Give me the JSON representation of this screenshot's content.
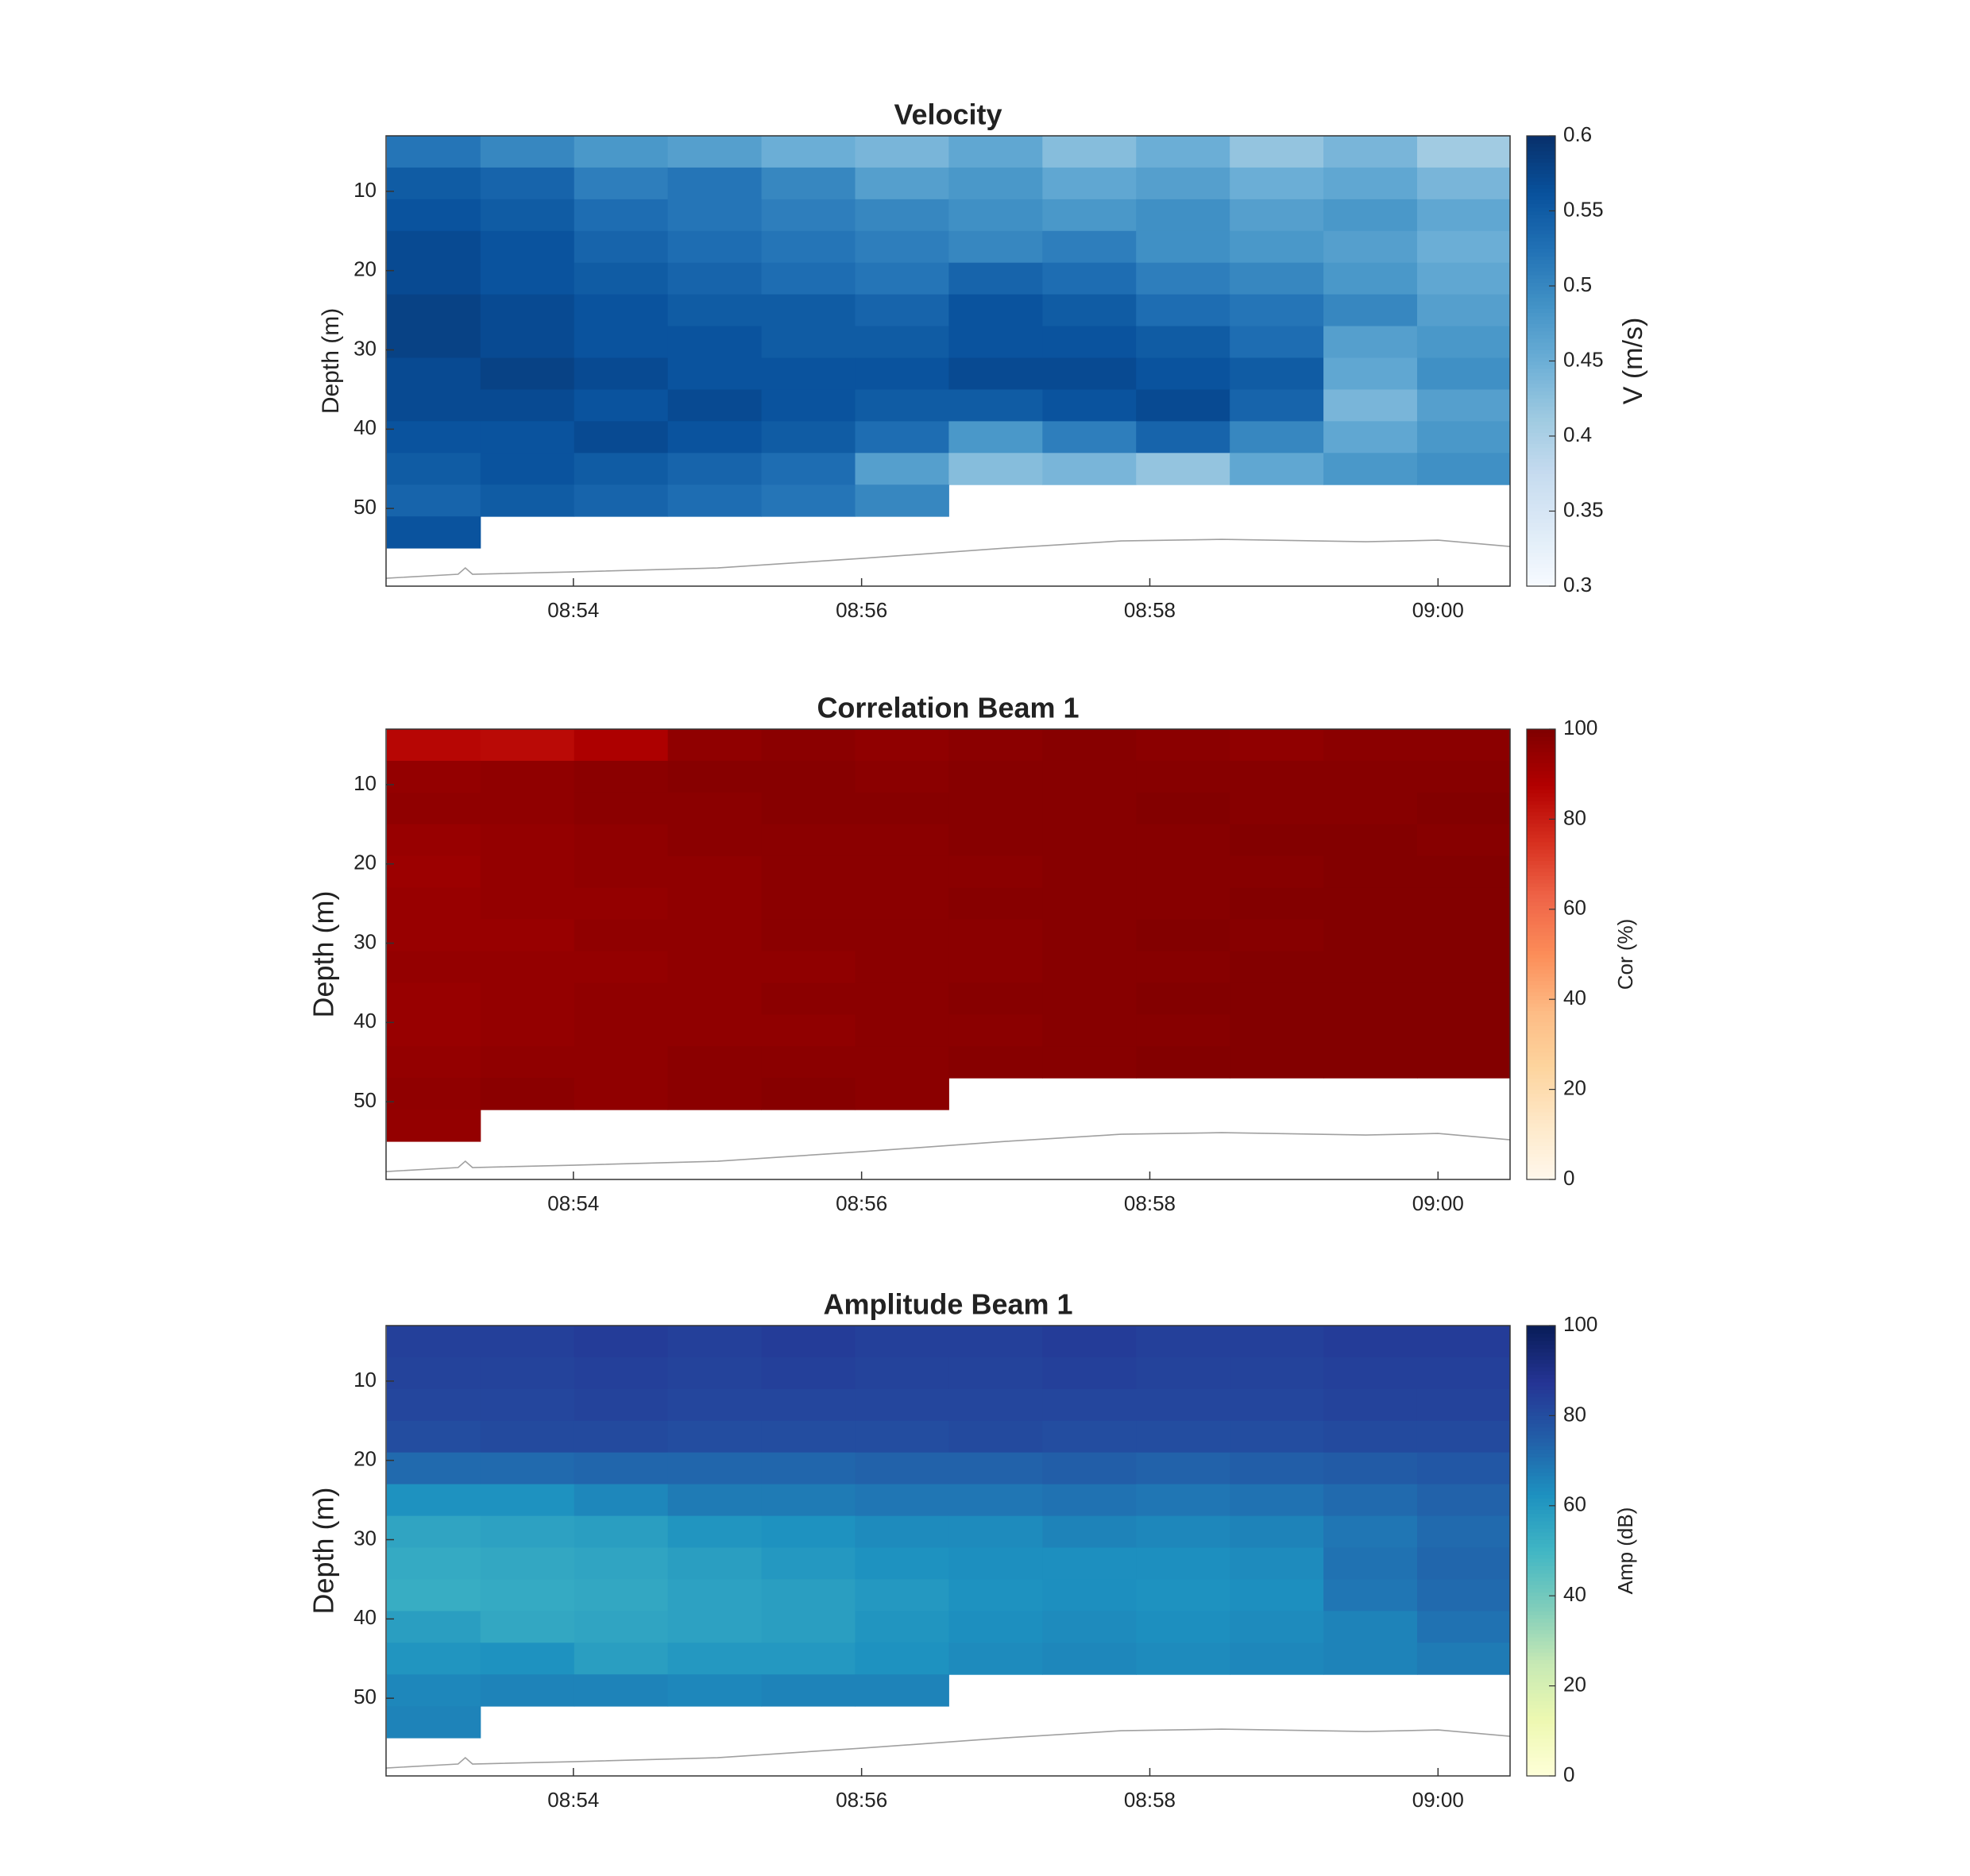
{
  "chart_data": [
    {
      "type": "heatmap",
      "title": "Velocity",
      "ylabel": "Depth (m)",
      "colorbar_label": "V (m/s)",
      "xlim": [
        532.7,
        540.5
      ],
      "ylim": [
        3,
        59.8
      ],
      "xticks": [
        {
          "value": 534,
          "label": "08:54"
        },
        {
          "value": 536,
          "label": "08:56"
        },
        {
          "value": 538,
          "label": "08:58"
        },
        {
          "value": 540,
          "label": "09:00"
        }
      ],
      "yticks": [
        10,
        20,
        30,
        40,
        50
      ],
      "clim": [
        0.3,
        0.6
      ],
      "cticks": [
        0.3,
        0.35,
        0.4,
        0.45,
        0.5,
        0.55,
        0.6
      ],
      "colormap": [
        "#f7fbff",
        "#deebf7",
        "#c6dbef",
        "#9ecae1",
        "#6baed6",
        "#4292c6",
        "#2171b5",
        "#08519c",
        "#08306b"
      ],
      "x": [
        533.03,
        533.68,
        534.33,
        534.98,
        535.63,
        536.28,
        536.93,
        537.58,
        538.23,
        538.88,
        539.53,
        540.18
      ],
      "y": [
        5,
        9,
        13,
        17,
        21,
        25,
        29,
        33,
        37,
        41,
        45,
        49,
        53
      ],
      "z": [
        [
          0.52,
          0.5,
          0.48,
          0.47,
          0.45,
          0.44,
          0.46,
          0.43,
          0.45,
          0.42,
          0.44,
          0.41
        ],
        [
          0.55,
          0.54,
          0.51,
          0.52,
          0.5,
          0.47,
          0.48,
          0.46,
          0.47,
          0.45,
          0.46,
          0.44
        ],
        [
          0.56,
          0.55,
          0.53,
          0.52,
          0.51,
          0.5,
          0.49,
          0.48,
          0.49,
          0.47,
          0.48,
          0.46
        ],
        [
          0.57,
          0.56,
          0.54,
          0.53,
          0.52,
          0.51,
          0.5,
          0.51,
          0.49,
          0.48,
          0.47,
          0.45
        ],
        [
          0.57,
          0.56,
          0.55,
          0.54,
          0.53,
          0.52,
          0.54,
          0.53,
          0.51,
          0.5,
          0.48,
          0.46
        ],
        [
          0.58,
          0.57,
          0.56,
          0.55,
          0.55,
          0.54,
          0.56,
          0.55,
          0.53,
          0.52,
          0.5,
          0.47
        ],
        [
          0.58,
          0.57,
          0.56,
          0.56,
          0.55,
          0.55,
          0.56,
          0.56,
          0.55,
          0.53,
          0.47,
          0.48
        ],
        [
          0.57,
          0.58,
          0.57,
          0.56,
          0.56,
          0.56,
          0.57,
          0.57,
          0.56,
          0.55,
          0.46,
          0.49
        ],
        [
          0.57,
          0.57,
          0.56,
          0.57,
          0.56,
          0.55,
          0.55,
          0.56,
          0.57,
          0.54,
          0.44,
          0.47
        ],
        [
          0.56,
          0.56,
          0.57,
          0.56,
          0.55,
          0.53,
          0.48,
          0.51,
          0.54,
          0.5,
          0.46,
          0.48
        ],
        [
          0.55,
          0.56,
          0.55,
          0.54,
          0.53,
          0.47,
          0.43,
          0.44,
          0.42,
          0.46,
          0.48,
          0.49
        ],
        [
          0.54,
          0.55,
          0.54,
          0.53,
          0.52,
          0.5,
          null,
          null,
          null,
          null,
          null,
          null
        ],
        [
          0.56,
          null,
          null,
          null,
          null,
          null,
          null,
          null,
          null,
          null,
          null,
          null
        ]
      ],
      "bottom_line": {
        "color": "#a0a0a0",
        "x": [
          532.7,
          533.2,
          533.25,
          533.3,
          534,
          535,
          536,
          537,
          537.8,
          538.5,
          539.5,
          540,
          540.5
        ],
        "values": [
          58.8,
          58.3,
          57.5,
          58.3,
          58,
          57.5,
          56.3,
          55,
          54.1,
          53.9,
          54.2,
          54,
          54.8
        ]
      }
    },
    {
      "type": "heatmap",
      "title": "Correlation Beam 1",
      "ylabel": "Depth (m)",
      "colorbar_label": "Cor (%)",
      "xlim": [
        532.7,
        540.5
      ],
      "ylim": [
        3,
        59.8
      ],
      "xticks": [
        {
          "value": 534,
          "label": "08:54"
        },
        {
          "value": 536,
          "label": "08:56"
        },
        {
          "value": 538,
          "label": "08:58"
        },
        {
          "value": 540,
          "label": "09:00"
        }
      ],
      "yticks": [
        10,
        20,
        30,
        40,
        50
      ],
      "clim": [
        0,
        100
      ],
      "cticks": [
        0,
        20,
        40,
        60,
        80,
        100
      ],
      "colormap": [
        "#fff7ec",
        "#fee8c8",
        "#fdd49e",
        "#fdbb84",
        "#fc8d59",
        "#ef6548",
        "#d7301f",
        "#b30000",
        "#7f0000"
      ],
      "x": [
        533.03,
        533.68,
        534.33,
        534.98,
        535.63,
        536.28,
        536.93,
        537.58,
        538.23,
        538.88,
        539.53,
        540.18
      ],
      "y": [
        5,
        9,
        13,
        17,
        21,
        25,
        29,
        33,
        37,
        41,
        45,
        49,
        53
      ],
      "z": [
        [
          86,
          85,
          89,
          96,
          97,
          96,
          97,
          98,
          97,
          96,
          97,
          97
        ],
        [
          95,
          96,
          97,
          98,
          98,
          97,
          98,
          98,
          98,
          98,
          98,
          98
        ],
        [
          96,
          96,
          97,
          97,
          98,
          98,
          98,
          98,
          99,
          98,
          98,
          99
        ],
        [
          94,
          95,
          96,
          97,
          97,
          97,
          98,
          98,
          98,
          99,
          99,
          98
        ],
        [
          93,
          95,
          96,
          96,
          97,
          97,
          97,
          98,
          98,
          98,
          99,
          99
        ],
        [
          94,
          95,
          95,
          96,
          97,
          97,
          98,
          98,
          98,
          99,
          99,
          99
        ],
        [
          94,
          94,
          96,
          96,
          97,
          97,
          97,
          98,
          99,
          98,
          99,
          99
        ],
        [
          95,
          95,
          95,
          96,
          96,
          97,
          97,
          98,
          98,
          99,
          99,
          99
        ],
        [
          94,
          95,
          96,
          96,
          97,
          97,
          98,
          98,
          99,
          99,
          99,
          99
        ],
        [
          94,
          95,
          96,
          96,
          96,
          97,
          97,
          98,
          98,
          99,
          99,
          99
        ],
        [
          95,
          96,
          96,
          97,
          97,
          97,
          98,
          98,
          99,
          99,
          99,
          99
        ],
        [
          96,
          97,
          96,
          97,
          98,
          97,
          null,
          null,
          null,
          null,
          null,
          null
        ],
        [
          95,
          null,
          null,
          null,
          null,
          null,
          null,
          null,
          null,
          null,
          null,
          null
        ]
      ],
      "bottom_line": {
        "color": "#a0a0a0",
        "x": [
          532.7,
          533.2,
          533.25,
          533.3,
          534,
          535,
          536,
          537,
          537.8,
          538.5,
          539.5,
          540,
          540.5
        ],
        "values": [
          58.8,
          58.3,
          57.5,
          58.3,
          58,
          57.5,
          56.3,
          55,
          54.1,
          53.9,
          54.2,
          54,
          54.8
        ]
      }
    },
    {
      "type": "heatmap",
      "title": "Amplitude Beam 1",
      "ylabel": "Depth (m)",
      "colorbar_label": "Amp (dB)",
      "xlim": [
        532.7,
        540.5
      ],
      "ylim": [
        3,
        59.8
      ],
      "xticks": [
        {
          "value": 534,
          "label": "08:54"
        },
        {
          "value": 536,
          "label": "08:56"
        },
        {
          "value": 538,
          "label": "08:58"
        },
        {
          "value": 540,
          "label": "09:00"
        }
      ],
      "yticks": [
        10,
        20,
        30,
        40,
        50
      ],
      "clim": [
        0,
        100
      ],
      "cticks": [
        0,
        20,
        40,
        60,
        80,
        100
      ],
      "colormap": [
        "#ffffd9",
        "#edf8b1",
        "#c7e9b4",
        "#7fcdbb",
        "#41b6c4",
        "#1d91c0",
        "#225ea8",
        "#253494",
        "#081d58"
      ],
      "x": [
        533.03,
        533.68,
        534.33,
        534.98,
        535.63,
        536.28,
        536.93,
        537.58,
        538.23,
        538.88,
        539.53,
        540.18
      ],
      "y": [
        5,
        9,
        13,
        17,
        21,
        25,
        29,
        33,
        37,
        41,
        45,
        49,
        53
      ],
      "z": [
        [
          84,
          84,
          85,
          84,
          85,
          84,
          84,
          85,
          84,
          84,
          85,
          85
        ],
        [
          83,
          83,
          84,
          83,
          84,
          83,
          83,
          84,
          83,
          83,
          84,
          84
        ],
        [
          82,
          82,
          83,
          82,
          82,
          82,
          82,
          82,
          82,
          82,
          83,
          83
        ],
        [
          80,
          81,
          81,
          80,
          80,
          80,
          81,
          80,
          80,
          80,
          81,
          81
        ],
        [
          72,
          72,
          73,
          73,
          73,
          74,
          74,
          75,
          74,
          75,
          76,
          77
        ],
        [
          62,
          62,
          65,
          68,
          68,
          69,
          69,
          70,
          69,
          70,
          72,
          74
        ],
        [
          56,
          57,
          58,
          61,
          62,
          64,
          64,
          66,
          65,
          66,
          69,
          72
        ],
        [
          54,
          55,
          56,
          58,
          60,
          62,
          63,
          63,
          63,
          64,
          70,
          73
        ],
        [
          53,
          54,
          55,
          57,
          58,
          60,
          62,
          63,
          62,
          63,
          69,
          72
        ],
        [
          58,
          55,
          56,
          57,
          58,
          61,
          63,
          64,
          63,
          64,
          66,
          70
        ],
        [
          61,
          62,
          58,
          60,
          60,
          62,
          64,
          65,
          64,
          65,
          66,
          68
        ],
        [
          65,
          66,
          66,
          65,
          66,
          66,
          null,
          null,
          null,
          null,
          null,
          null
        ],
        [
          66,
          null,
          null,
          null,
          null,
          null,
          null,
          null,
          null,
          null,
          null,
          null
        ]
      ],
      "bottom_line": {
        "color": "#a0a0a0",
        "x": [
          532.7,
          533.2,
          533.25,
          533.3,
          534,
          535,
          536,
          537,
          537.8,
          538.5,
          539.5,
          540,
          540.5
        ],
        "values": [
          58.8,
          58.3,
          57.5,
          58.3,
          58,
          57.5,
          56.3,
          55,
          54.1,
          53.9,
          54.2,
          54,
          54.8
        ]
      }
    }
  ]
}
